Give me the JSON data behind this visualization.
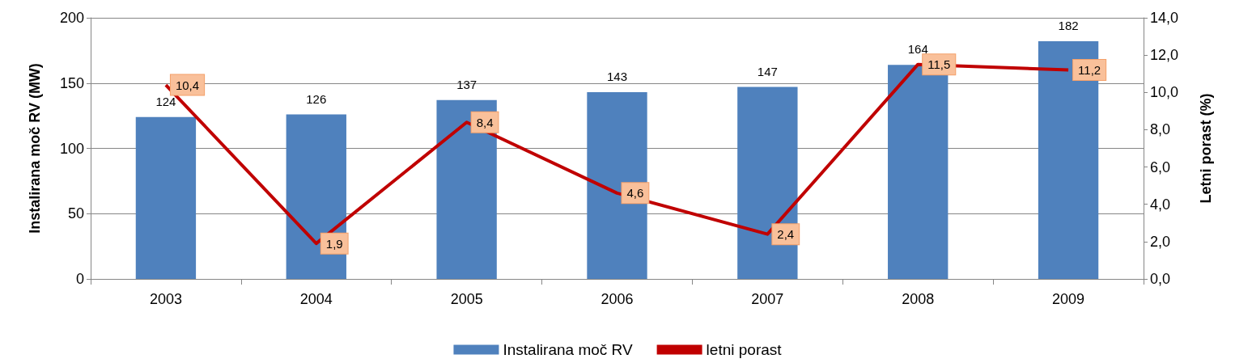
{
  "chart_data": {
    "type": "bar",
    "categories": [
      "2003",
      "2004",
      "2005",
      "2006",
      "2007",
      "2008",
      "2009"
    ],
    "ylabel": "Instalirana moč RV (MW)",
    "y2label": "Letni porast (%)",
    "ylim": [
      0,
      200
    ],
    "yticks": [
      0,
      50,
      100,
      150,
      200
    ],
    "y2lim": [
      0,
      14
    ],
    "y2ticks": [
      {
        "value": 0,
        "label": "0,0"
      },
      {
        "value": 2,
        "label": "2,0"
      },
      {
        "value": 4,
        "label": "4,0"
      },
      {
        "value": 6,
        "label": "6,0"
      },
      {
        "value": 8,
        "label": "8,0"
      },
      {
        "value": 10,
        "label": "10,0"
      },
      {
        "value": 12,
        "label": "12,0"
      },
      {
        "value": 14,
        "label": "14,0"
      }
    ],
    "grid": "y",
    "legend": "bottom",
    "series": [
      {
        "name": "Instalirana moč RV",
        "color": "#4f81bd",
        "values": [
          124,
          126,
          137,
          143,
          147,
          164,
          182
        ],
        "value_labels": [
          "124",
          "126",
          "137",
          "143",
          "147",
          "164",
          "182"
        ]
      },
      {
        "name": "letni porast",
        "type": "line",
        "axis": "y2",
        "color": "#c00000",
        "marker": "none",
        "values": [
          10.4,
          1.9,
          8.4,
          4.6,
          2.4,
          11.5,
          11.2
        ],
        "value_labels": [
          "10,4",
          "1,9",
          "8,4",
          "4,6",
          "2,4",
          "11,5",
          "11,2"
        ]
      }
    ]
  }
}
